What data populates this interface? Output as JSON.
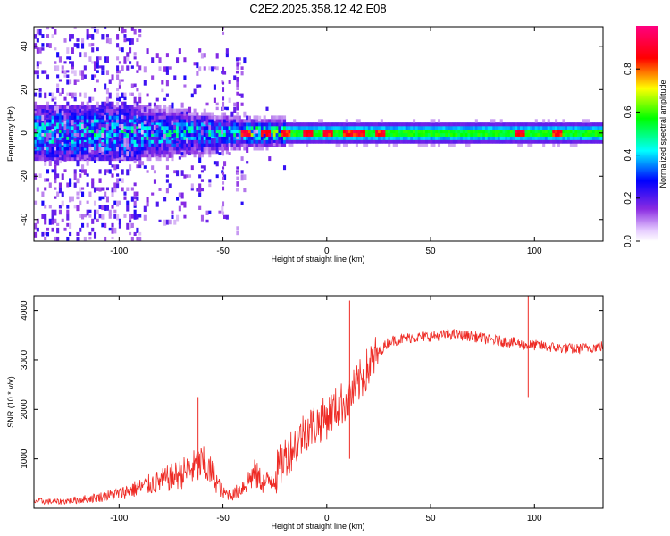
{
  "page": {
    "title": "C2E2.2025.358.12.42.E08"
  },
  "chart_data": [
    {
      "type": "heatmap",
      "title": "C2E2.2025.358.12.42.E08",
      "xlabel": "Height of straight line (km)",
      "ylabel": "Frequency (Hz)",
      "xlim": [
        -141,
        133
      ],
      "ylim": [
        -50,
        49
      ],
      "xticks": [
        -100,
        -50,
        0,
        50,
        100
      ],
      "yticks": [
        -40,
        -20,
        0,
        20,
        40
      ],
      "colorbar": {
        "label": "Normalized spectral amplitude",
        "range": [
          0,
          1
        ],
        "ticks": [
          "0.0",
          "0.2",
          "0.4",
          "0.6",
          "0.8"
        ],
        "colors": [
          "#ffffff",
          "#8a2be2",
          "#0000ff",
          "#00ffff",
          "#00ff00",
          "#ffff00",
          "#ff0000",
          "#ff0080"
        ]
      },
      "band": {
        "center_hz": 0,
        "description": "energy concentrated near 0 Hz; broad scatter below -40 km, narrow stable band above -25 km",
        "peak_heights_km": [
          -40,
          -30,
          -20,
          -10,
          0,
          10,
          15,
          25,
          92,
          110
        ]
      },
      "spike_columns_km": [
        -50,
        -43
      ]
    },
    {
      "type": "line",
      "xlabel": "Height of straight line (km)",
      "ylabel": "SNR (10 * v/v)",
      "xlim": [
        -141,
        133
      ],
      "ylim": [
        0,
        4300
      ],
      "xticks": [
        -100,
        -50,
        0,
        50,
        100
      ],
      "yticks": [
        1000,
        2000,
        3000,
        4000
      ],
      "series": [
        {
          "name": "SNR",
          "color": "#ee2a24",
          "x": [
            -141,
            -130,
            -120,
            -110,
            -100,
            -90,
            -80,
            -70,
            -60,
            -55,
            -50,
            -45,
            -40,
            -35,
            -30,
            -25,
            -20,
            -15,
            -10,
            -5,
            0,
            5,
            10,
            15,
            20,
            25,
            30,
            40,
            50,
            60,
            70,
            80,
            90,
            95,
            100,
            110,
            120,
            133
          ],
          "y": [
            150,
            130,
            170,
            220,
            300,
            420,
            550,
            700,
            900,
            700,
            300,
            280,
            450,
            700,
            500,
            650,
            1050,
            1300,
            1600,
            1700,
            1850,
            2050,
            2200,
            2500,
            2850,
            3150,
            3380,
            3450,
            3480,
            3520,
            3480,
            3400,
            3350,
            3300,
            3300,
            3250,
            3220,
            3280
          ]
        }
      ],
      "spikes": [
        {
          "x": 11,
          "y": 4200
        },
        {
          "x": 97,
          "y": 4300
        },
        {
          "x": 97,
          "y": 2250
        },
        {
          "x": 11,
          "y": 1000
        },
        {
          "x": -62,
          "y": 2250
        }
      ]
    }
  ]
}
